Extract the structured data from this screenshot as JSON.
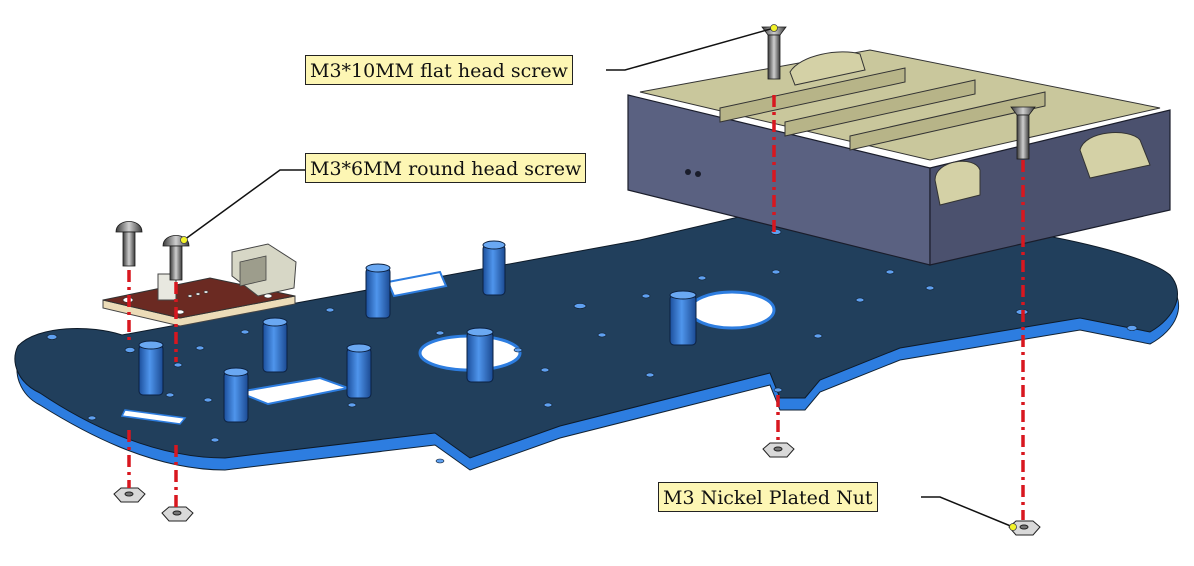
{
  "callouts": {
    "flat_screw": "M3*10MM flat head screw",
    "round_screw": "M3*6MM round head screw",
    "nut": "M3 Nickel Plated Nut"
  },
  "colors": {
    "plate_top": "#213f5c",
    "plate_edge": "#2d7de0",
    "standoff": "#2f75d6",
    "battery_box": "#5a6181",
    "battery_inner": "#c9c79c",
    "pcb": "#6b2a22",
    "assembly_line": "#d8171f",
    "callout_fill": "#fdf6b4"
  }
}
